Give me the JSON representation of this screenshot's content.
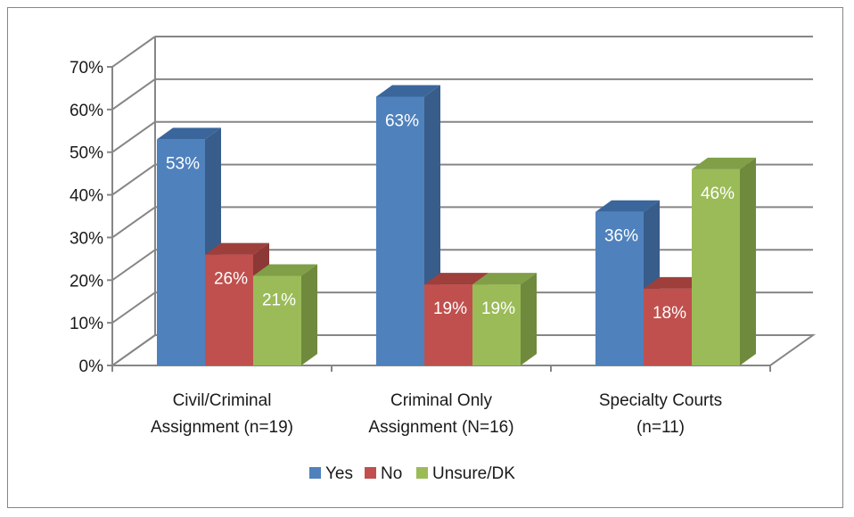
{
  "chart_data": {
    "type": "bar",
    "style": "3d-clustered-column",
    "title": "",
    "xlabel": "",
    "ylabel": "",
    "ylim": [
      0,
      70
    ],
    "yticks": [
      "0%",
      "10%",
      "20%",
      "30%",
      "40%",
      "50%",
      "60%",
      "70%"
    ],
    "grid": true,
    "legend_position": "bottom",
    "categories": [
      [
        "Civil/Criminal",
        "Assignment (n=19)"
      ],
      [
        "Criminal Only",
        "Assignment (N=16)"
      ],
      [
        "Specialty Courts",
        "(n=11)"
      ]
    ],
    "series": [
      {
        "name": "Yes",
        "values": [
          53,
          63,
          36
        ],
        "labels": [
          "53%",
          "63%",
          "36%"
        ],
        "color": "#4F81BD",
        "side": "#385D8A",
        "top": "#3A669C"
      },
      {
        "name": "No",
        "values": [
          26,
          19,
          18
        ],
        "labels": [
          "26%",
          "19%",
          "18%"
        ],
        "color": "#C0504D",
        "side": "#8C3836",
        "top": "#9E3F3C"
      },
      {
        "name": "Unsure/DK",
        "values": [
          21,
          19,
          46
        ],
        "labels": [
          "21%",
          "19%",
          "46%"
        ],
        "color": "#9BBB59",
        "side": "#6F8A3C",
        "top": "#809F47"
      }
    ]
  }
}
